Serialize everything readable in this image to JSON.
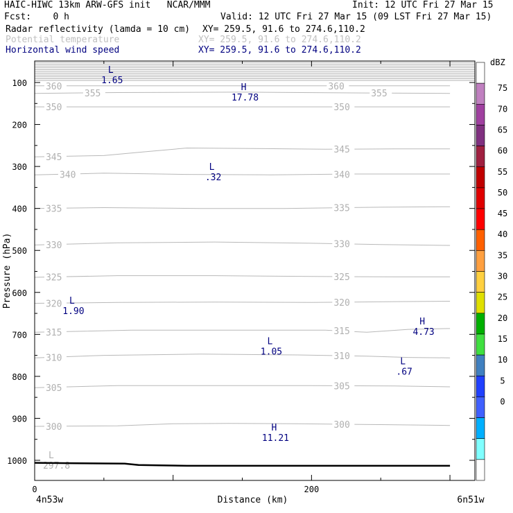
{
  "header": {
    "model": "HAIC-HIWC 13km ARW-GFS init   NCAR/MMM",
    "init": "Init: 12 UTC Fri 27 Mar 15",
    "fcst": "Fcst:    0 h",
    "valid": "Valid: 12 UTC Fri 27 Mar 15 (09 LST Fri 27 Mar 15)",
    "fields": [
      {
        "name": "Radar reflectivity (lamda = 10 cm)",
        "xy": "XY= 259.5, 91.6 to 274.6,110.2",
        "color": "#000000"
      },
      {
        "name": "Potential temperature",
        "xy": "XY= 259.5, 91.6 to 274.6,110.2",
        "color": "#c0c0c0"
      },
      {
        "name": "Horizontal wind speed",
        "xy": "XY= 259.5, 91.6 to 274.6,110.2",
        "color": "#000080"
      }
    ]
  },
  "chart_data": {
    "type": "contour-cross-section",
    "ylabel": "Pressure (hPa)",
    "xlabel": "Distance (km)",
    "x_left_label": "4n53w",
    "x_right_label": "6n51w",
    "x_ticks": [
      0,
      200
    ],
    "y_ticks": [
      100,
      200,
      300,
      400,
      500,
      600,
      700,
      800,
      900,
      1000
    ],
    "xlim": [
      0,
      300
    ],
    "ylim": [
      1050,
      50
    ],
    "theta_contours": [
      {
        "level": 360,
        "pts": [
          [
            0,
            108
          ],
          [
            100,
            108
          ],
          [
            200,
            108
          ],
          [
            300,
            108
          ]
        ],
        "labels": [
          [
            8,
            360
          ],
          [
            212,
            360
          ]
        ]
      },
      {
        "level": 355,
        "pts": [
          [
            0,
            126
          ],
          [
            60,
            124
          ],
          [
            150,
            123
          ],
          [
            240,
            125
          ],
          [
            300,
            126
          ]
        ],
        "labels": [
          [
            36,
            355
          ],
          [
            243,
            355
          ]
        ]
      },
      {
        "level": 350,
        "pts": [
          [
            0,
            158
          ],
          [
            80,
            158
          ],
          [
            150,
            158
          ],
          [
            250,
            158
          ],
          [
            300,
            158
          ]
        ],
        "labels": [
          [
            8,
            350
          ],
          [
            216,
            350
          ]
        ]
      },
      {
        "level": 345,
        "pts": [
          [
            0,
            277
          ],
          [
            50,
            274
          ],
          [
            80,
            265
          ],
          [
            110,
            256
          ],
          [
            150,
            257
          ],
          [
            210,
            259
          ],
          [
            260,
            258
          ],
          [
            300,
            258
          ]
        ],
        "labels": [
          [
            8,
            345
          ],
          [
            216,
            345
          ]
        ]
      },
      {
        "level": 340,
        "pts": [
          [
            0,
            320
          ],
          [
            50,
            316
          ],
          [
            110,
            319
          ],
          [
            170,
            320
          ],
          [
            230,
            318
          ],
          [
            300,
            318
          ]
        ],
        "labels": [
          [
            18,
            340
          ],
          [
            216,
            340
          ]
        ]
      },
      {
        "level": 335,
        "pts": [
          [
            0,
            400
          ],
          [
            50,
            398
          ],
          [
            120,
            400
          ],
          [
            180,
            400
          ],
          [
            250,
            397
          ],
          [
            300,
            396
          ]
        ],
        "labels": [
          [
            8,
            335
          ],
          [
            216,
            335
          ]
        ]
      },
      {
        "level": 330,
        "pts": [
          [
            0,
            487
          ],
          [
            60,
            482
          ],
          [
            130,
            480
          ],
          [
            200,
            483
          ],
          [
            250,
            486
          ],
          [
            300,
            488
          ]
        ],
        "labels": [
          [
            8,
            330
          ],
          [
            216,
            330
          ]
        ]
      },
      {
        "level": 325,
        "pts": [
          [
            0,
            564
          ],
          [
            60,
            560
          ],
          [
            130,
            560
          ],
          [
            200,
            562
          ],
          [
            260,
            563
          ],
          [
            300,
            563
          ]
        ],
        "labels": [
          [
            8,
            325
          ],
          [
            216,
            325
          ]
        ]
      },
      {
        "level": 320,
        "pts": [
          [
            0,
            626
          ],
          [
            60,
            624
          ],
          [
            130,
            623
          ],
          [
            200,
            624
          ],
          [
            260,
            622
          ],
          [
            300,
            621
          ]
        ],
        "labels": [
          [
            8,
            320
          ],
          [
            216,
            320
          ]
        ]
      },
      {
        "level": 315,
        "pts": [
          [
            0,
            695
          ],
          [
            70,
            690
          ],
          [
            140,
            690
          ],
          [
            210,
            690
          ],
          [
            240,
            695
          ],
          [
            270,
            688
          ],
          [
            300,
            686
          ]
        ],
        "labels": [
          [
            8,
            315
          ],
          [
            216,
            315
          ]
        ]
      },
      {
        "level": 310,
        "pts": [
          [
            0,
            756
          ],
          [
            50,
            750
          ],
          [
            120,
            747
          ],
          [
            190,
            749
          ],
          [
            240,
            752
          ],
          [
            270,
            755
          ],
          [
            300,
            756
          ]
        ],
        "labels": [
          [
            8,
            310
          ],
          [
            216,
            310
          ]
        ]
      },
      {
        "level": 305,
        "pts": [
          [
            0,
            827
          ],
          [
            60,
            822
          ],
          [
            130,
            822
          ],
          [
            200,
            822
          ],
          [
            260,
            823
          ],
          [
            300,
            825
          ]
        ],
        "labels": [
          [
            8,
            305
          ],
          [
            216,
            305
          ]
        ]
      },
      {
        "level": 300,
        "pts": [
          [
            0,
            919
          ],
          [
            60,
            918
          ],
          [
            100,
            913
          ],
          [
            140,
            912
          ],
          [
            190,
            913
          ],
          [
            250,
            915
          ],
          [
            300,
            917
          ]
        ],
        "labels": [
          [
            8,
            300
          ],
          [
            216,
            300
          ]
        ]
      }
    ],
    "theta_min_label": {
      "x": 4,
      "p": 1005,
      "mark": "L",
      "value": "297.8"
    },
    "ground_pts": [
      [
        0,
        1006
      ],
      [
        30,
        1007
      ],
      [
        65,
        1008
      ],
      [
        75,
        1011
      ],
      [
        90,
        1012
      ],
      [
        110,
        1013
      ],
      [
        300,
        1013
      ]
    ],
    "wind_extrema": [
      {
        "mark": "L",
        "value": "1.65",
        "x": 55,
        "p": 87
      },
      {
        "mark": "H",
        "value": "17.78",
        "x": 151,
        "p": 128
      },
      {
        "mark": "L",
        "value": ".32",
        "x": 128,
        "p": 318
      },
      {
        "mark": "L",
        "value": "1.90",
        "x": 27,
        "p": 637
      },
      {
        "mark": "H",
        "value": "4.73",
        "x": 280,
        "p": 686
      },
      {
        "mark": "L",
        "value": "1.05",
        "x": 170,
        "p": 733
      },
      {
        "mark": "L",
        "value": ".67",
        "x": 266,
        "p": 781
      },
      {
        "mark": "H",
        "value": "11.21",
        "x": 173,
        "p": 939
      }
    ],
    "colorbar": {
      "unit": "dBZ",
      "labels": [
        75,
        70,
        65,
        60,
        55,
        50,
        45,
        40,
        35,
        30,
        25,
        20,
        15,
        10,
        5,
        0
      ],
      "colors": [
        "#ffffff",
        "#c080c0",
        "#a040a0",
        "#803080",
        "#a02040",
        "#c00000",
        "#e00000",
        "#ff0000",
        "#ff6000",
        "#ffa040",
        "#ffd040",
        "#e0e000",
        "#00b000",
        "#40e040",
        "#4080c0",
        "#2040ff",
        "#4060ff",
        "#00b0ff",
        "#80ffff",
        "#ffffff"
      ]
    }
  }
}
